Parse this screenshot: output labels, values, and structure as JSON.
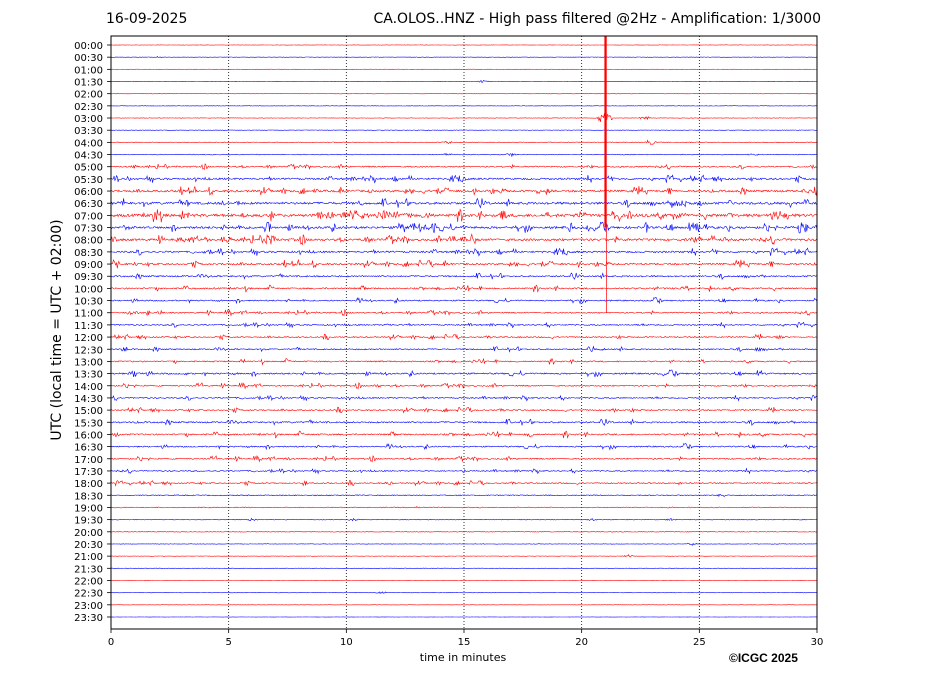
{
  "header": {
    "date": "16-09-2025",
    "title": "CA.OLOS..HNZ - High pass filtered @2Hz - Amplification: 1/3000"
  },
  "copyright": "©ICGC 2025",
  "colors": {
    "red": "#ff0000",
    "blue": "#0000ff",
    "axis": "#000000"
  },
  "chart_data": {
    "type": "line",
    "subtype": "helicorder",
    "title": "CA.OLOS..HNZ - High pass filtered @2Hz - Amplification: 1/3000",
    "date": "16-09-2025",
    "xlabel": "time in minutes",
    "ylabel": "UTC (local time = UTC + 02:00)",
    "xlim": [
      0,
      30
    ],
    "xticks": [
      0,
      5,
      10,
      15,
      20,
      25,
      30
    ],
    "vertical_gridlines": [
      5,
      10,
      15,
      20,
      25
    ],
    "rows": [
      "00:00",
      "00:30",
      "01:00",
      "01:30",
      "02:00",
      "02:30",
      "03:00",
      "03:30",
      "04:00",
      "04:30",
      "05:00",
      "05:30",
      "06:00",
      "06:30",
      "07:00",
      "07:30",
      "08:00",
      "08:30",
      "09:00",
      "09:30",
      "10:00",
      "10:30",
      "11:00",
      "11:30",
      "12:00",
      "12:30",
      "13:00",
      "13:30",
      "14:00",
      "14:30",
      "15:00",
      "15:30",
      "16:00",
      "16:30",
      "17:00",
      "17:30",
      "18:00",
      "18:30",
      "19:00",
      "19:30",
      "20:00",
      "20:30",
      "21:00",
      "21:30",
      "22:00",
      "22:30",
      "23:00",
      "23:30"
    ],
    "row_colors": [
      "red",
      "blue"
    ],
    "noise_level": [
      0.3,
      0.3,
      0.3,
      0.3,
      0.3,
      0.3,
      0.4,
      0.4,
      0.6,
      0.6,
      1.0,
      1.4,
      1.6,
      1.8,
      2.2,
      1.8,
      1.8,
      1.4,
      1.4,
      1.2,
      1.2,
      1.0,
      1.0,
      1.0,
      1.0,
      1.0,
      1.0,
      1.2,
      1.0,
      1.0,
      1.0,
      1.2,
      1.2,
      1.0,
      1.0,
      0.9,
      0.9,
      0.8,
      0.7,
      0.5,
      0.5,
      0.4,
      0.3,
      0.3,
      0.3,
      0.3,
      0.2,
      0.2
    ],
    "events": [
      {
        "row": "00:30",
        "minute": 2.0,
        "amp": 1.0
      },
      {
        "row": "01:30",
        "minute": 15.8,
        "amp": 1.5
      },
      {
        "row": "03:00",
        "minute": 21.0,
        "amp": 10.0
      },
      {
        "row": "03:00",
        "minute": 22.7,
        "amp": 2.0
      },
      {
        "row": "04:00",
        "minute": 14.3,
        "amp": 1.5
      },
      {
        "row": "04:00",
        "minute": 22.9,
        "amp": 3.0
      },
      {
        "row": "04:30",
        "minute": 14.3,
        "amp": 1.5
      },
      {
        "row": "04:30",
        "minute": 17.0,
        "amp": 2.0
      },
      {
        "row": "04:30",
        "minute": 27.3,
        "amp": 1.5
      },
      {
        "row": "05:00",
        "minute": 1.0,
        "amp": 2.0
      },
      {
        "row": "05:00",
        "minute": 26.8,
        "amp": 2.0
      },
      {
        "row": "05:30",
        "minute": 15.0,
        "amp": 2.0
      },
      {
        "row": "06:00",
        "minute": 11.0,
        "amp": 2.0
      },
      {
        "row": "06:00",
        "minute": 29.9,
        "amp": 2.5
      },
      {
        "row": "07:00",
        "minute": 8.9,
        "amp": 4.5
      },
      {
        "row": "07:00",
        "minute": 9.9,
        "amp": 4.0
      },
      {
        "row": "07:00",
        "minute": 11.8,
        "amp": 3.5
      },
      {
        "row": "07:00",
        "minute": 12.6,
        "amp": 4.5
      },
      {
        "row": "07:00",
        "minute": 13.3,
        "amp": 3.0
      },
      {
        "row": "07:00",
        "minute": 14.9,
        "amp": 4.0
      },
      {
        "row": "07:00",
        "minute": 19.8,
        "amp": 3.0
      },
      {
        "row": "07:30",
        "minute": 1.0,
        "amp": 2.0
      },
      {
        "row": "07:30",
        "minute": 15.0,
        "amp": 2.0
      },
      {
        "row": "08:00",
        "minute": 3.3,
        "amp": 3.0
      },
      {
        "row": "08:00",
        "minute": 26.1,
        "amp": 2.5
      },
      {
        "row": "08:30",
        "minute": 4.0,
        "amp": 1.5
      },
      {
        "row": "09:00",
        "minute": 3.5,
        "amp": 2.0
      },
      {
        "row": "10:00",
        "minute": 24.3,
        "amp": 2.0
      },
      {
        "row": "11:00",
        "minute": 6.3,
        "amp": 2.0
      },
      {
        "row": "11:30",
        "minute": 11.8,
        "amp": 1.5
      },
      {
        "row": "12:00",
        "minute": 28.4,
        "amp": 2.0
      },
      {
        "row": "12:30",
        "minute": 27.5,
        "amp": 2.0
      },
      {
        "row": "13:30",
        "minute": 1.0,
        "amp": 4.0
      },
      {
        "row": "14:00",
        "minute": 11.3,
        "amp": 2.0
      },
      {
        "row": "15:00",
        "minute": 21.4,
        "amp": 2.0
      },
      {
        "row": "16:00",
        "minute": 0.2,
        "amp": 2.5
      },
      {
        "row": "16:00",
        "minute": 17.8,
        "amp": 3.0
      },
      {
        "row": "17:00",
        "minute": 7.5,
        "amp": 2.0
      },
      {
        "row": "18:00",
        "minute": 11.8,
        "amp": 2.0
      },
      {
        "row": "18:30",
        "minute": 26.0,
        "amp": 2.0
      },
      {
        "row": "19:00",
        "minute": 13.0,
        "amp": 1.5
      },
      {
        "row": "19:30",
        "minute": 6.0,
        "amp": 1.5
      },
      {
        "row": "19:30",
        "minute": 10.3,
        "amp": 1.5
      },
      {
        "row": "19:30",
        "minute": 20.4,
        "amp": 1.5
      },
      {
        "row": "19:30",
        "minute": 23.8,
        "amp": 1.5
      },
      {
        "row": "20:30",
        "minute": 24.7,
        "amp": 1.5
      },
      {
        "row": "21:00",
        "minute": 22.0,
        "amp": 1.5
      },
      {
        "row": "22:30",
        "minute": 11.5,
        "amp": 1.5
      }
    ]
  }
}
